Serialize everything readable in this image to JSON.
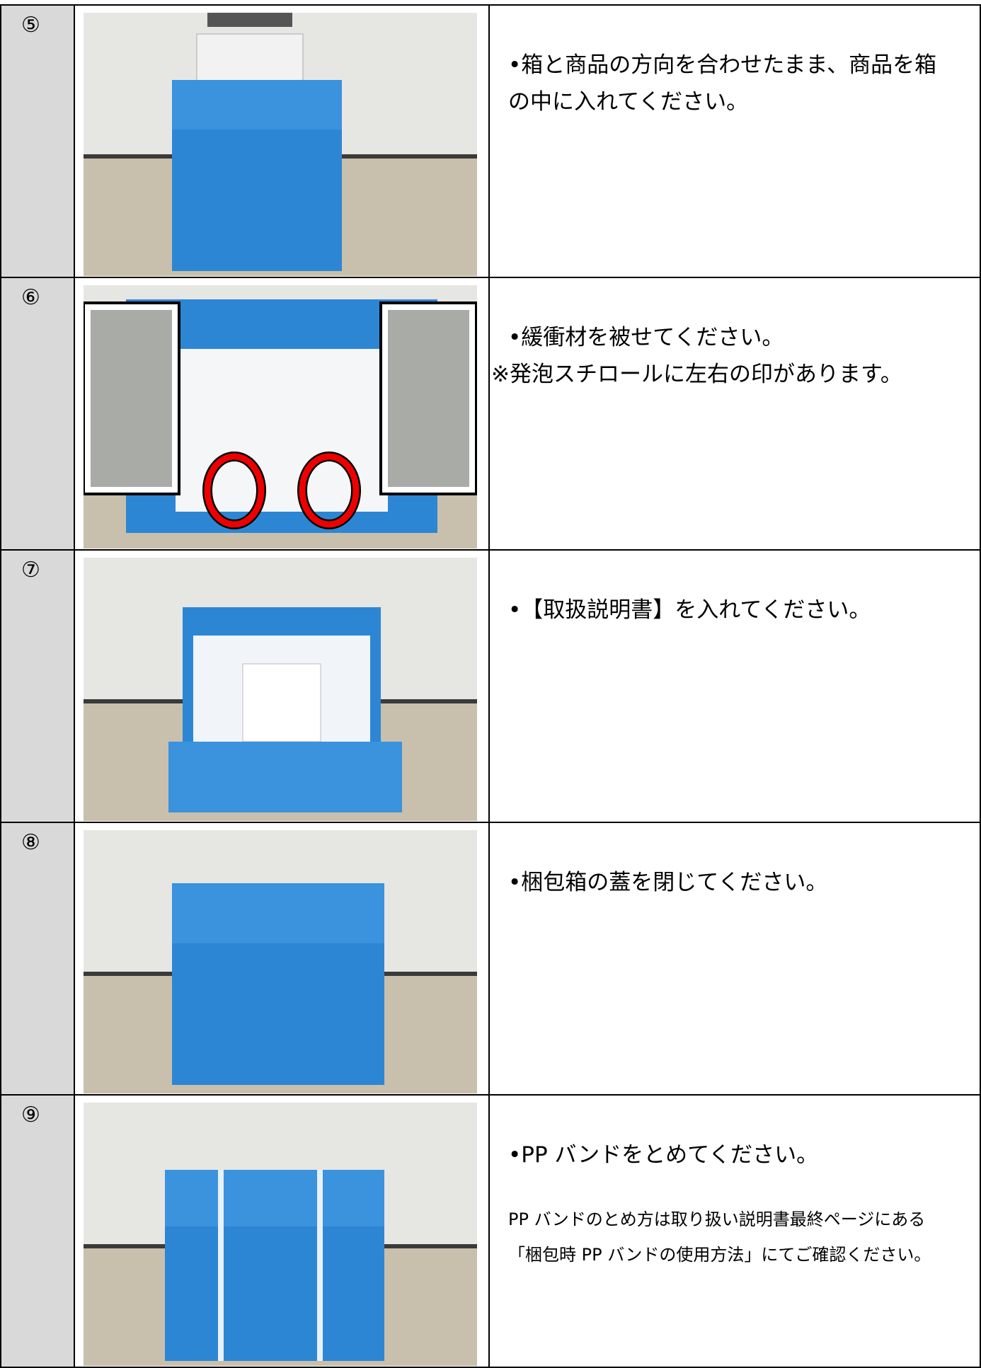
{
  "steps": [
    {
      "number": "⑤",
      "text": "•箱と商品の方向を合わせたまま、商品を箱の中に入れてください。"
    },
    {
      "number": "⑥",
      "text": "•緩衝材を被せてください。",
      "note": "※発泡スチロールに左右の印があります。"
    },
    {
      "number": "⑦",
      "text": "•【取扱説明書】を入れてください。"
    },
    {
      "number": "⑧",
      "text": "•梱包箱の蓋を閉じてください。"
    },
    {
      "number": "⑨",
      "text": "•PP バンドをとめてください。",
      "note": "PP バンドのとめ方は取り扱い説明書最終ページにある「梱包時 PP バンドの使用方法」にてご確認ください。"
    }
  ]
}
